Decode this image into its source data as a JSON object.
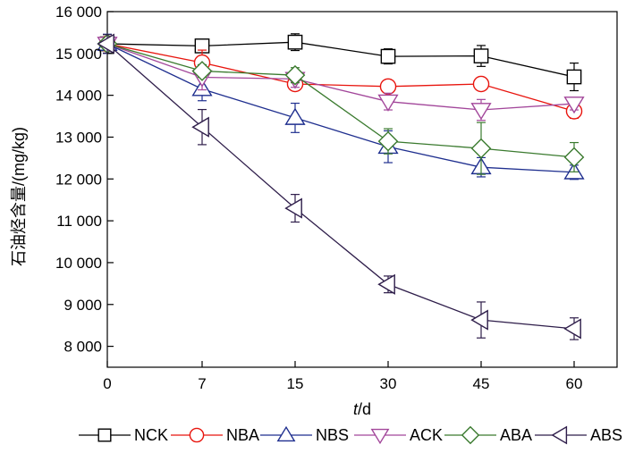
{
  "chart_data": {
    "type": "line",
    "x": [
      0,
      7,
      15,
      30,
      45,
      60
    ],
    "x_tick_labels": [
      "0",
      "7",
      "15",
      "30",
      "45",
      "60"
    ],
    "xlabel_italic": "t",
    "xlabel_rest": "/d",
    "ylabel": "石油烃含量/(mg/kg)",
    "ylim": [
      7500,
      16000
    ],
    "y_ticks": [
      8000,
      9000,
      10000,
      11000,
      12000,
      13000,
      14000,
      15000,
      16000
    ],
    "y_tick_labels": [
      "8 000",
      "9 000",
      "10 000",
      "11 000",
      "12 000",
      "13 000",
      "14 000",
      "15 000",
      "16 000"
    ],
    "grid": false,
    "legend_position": "bottom",
    "series": [
      {
        "name": "NCK",
        "color": "#000000",
        "marker": "square",
        "values": [
          15230,
          15180,
          15270,
          14930,
          14940,
          14440
        ],
        "errors": [
          120,
          90,
          200,
          180,
          250,
          330
        ]
      },
      {
        "name": "NBA",
        "color": "#e8150e",
        "marker": "circle",
        "values": [
          15230,
          14780,
          14270,
          14210,
          14270,
          13620
        ],
        "errors": [
          120,
          300,
          150,
          150,
          120,
          170
        ]
      },
      {
        "name": "NBS",
        "color": "#1f2f8f",
        "marker": "triangle-up",
        "values": [
          15230,
          14150,
          13460,
          12770,
          12280,
          12160
        ],
        "errors": [
          230,
          280,
          350,
          380,
          230,
          170
        ]
      },
      {
        "name": "ACK",
        "color": "#a2469a",
        "marker": "triangle-down",
        "values": [
          15230,
          14430,
          14390,
          13850,
          13650,
          13800
        ],
        "errors": [
          120,
          300,
          200,
          200,
          250,
          150
        ]
      },
      {
        "name": "ABA",
        "color": "#3a7a2e",
        "marker": "diamond",
        "values": [
          15230,
          14580,
          14480,
          12900,
          12730,
          12520
        ],
        "errors": [
          120,
          150,
          180,
          300,
          620,
          350
        ]
      },
      {
        "name": "ABS",
        "color": "#2e1d4a",
        "marker": "triangle-left",
        "values": [
          15230,
          13240,
          11300,
          9480,
          8630,
          8420
        ],
        "errors": [
          220,
          420,
          330,
          200,
          430,
          260
        ]
      }
    ]
  }
}
